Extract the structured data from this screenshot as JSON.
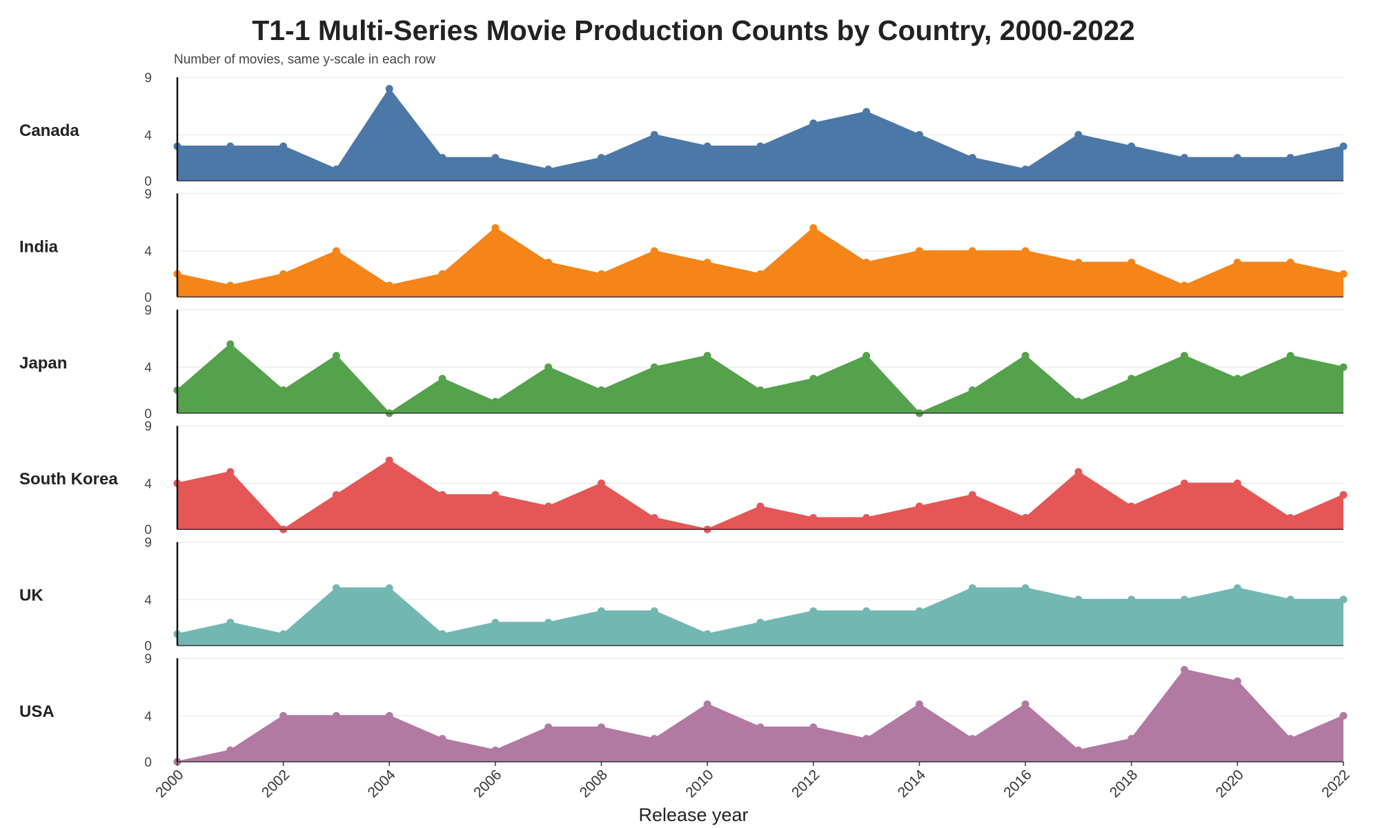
{
  "chart_data": {
    "type": "area",
    "title": "T1-1 Multi-Series Movie Production Counts by Country, 2000-2022",
    "subtitle": "Number of movies, same y-scale in each row",
    "xlabel": "Release year",
    "ylabel": "",
    "x": [
      2000,
      2001,
      2002,
      2003,
      2004,
      2005,
      2006,
      2007,
      2008,
      2009,
      2010,
      2011,
      2012,
      2013,
      2014,
      2015,
      2016,
      2017,
      2018,
      2019,
      2020,
      2021,
      2022
    ],
    "xticks": [
      "2000",
      "2002",
      "2004",
      "2006",
      "2008",
      "2010",
      "2012",
      "2014",
      "2016",
      "2018",
      "2020",
      "2022"
    ],
    "yticks": [
      "0",
      "4",
      "9"
    ],
    "ylim": [
      0,
      9
    ],
    "grid": true,
    "legend": "none (row labels on left)",
    "series": [
      {
        "name": "Canada",
        "color": "#4c78a8",
        "values": [
          3,
          3,
          3,
          1,
          8,
          2,
          2,
          1,
          2,
          4,
          3,
          3,
          5,
          6,
          4,
          2,
          1,
          4,
          3,
          2,
          2,
          2,
          3
        ]
      },
      {
        "name": "India",
        "color": "#f58518",
        "values": [
          2,
          1,
          2,
          4,
          1,
          2,
          6,
          3,
          2,
          4,
          3,
          2,
          6,
          3,
          4,
          4,
          4,
          3,
          3,
          1,
          3,
          3,
          2
        ]
      },
      {
        "name": "Japan",
        "color": "#54a24b",
        "values": [
          2,
          6,
          2,
          5,
          0,
          3,
          1,
          4,
          2,
          4,
          5,
          2,
          3,
          5,
          0,
          2,
          5,
          1,
          3,
          5,
          3,
          5,
          4
        ]
      },
      {
        "name": "South Korea",
        "color": "#e45756",
        "values": [
          4,
          5,
          0,
          3,
          6,
          3,
          3,
          2,
          4,
          1,
          0,
          2,
          1,
          1,
          2,
          3,
          1,
          5,
          2,
          4,
          4,
          1,
          3
        ]
      },
      {
        "name": "UK",
        "color": "#72b7b2",
        "values": [
          1,
          2,
          1,
          5,
          5,
          1,
          2,
          2,
          3,
          3,
          1,
          2,
          3,
          3,
          3,
          5,
          5,
          4,
          4,
          4,
          5,
          4,
          4
        ]
      },
      {
        "name": "USA",
        "color": "#b279a2",
        "values": [
          0,
          1,
          4,
          4,
          4,
          2,
          1,
          3,
          3,
          2,
          5,
          3,
          3,
          2,
          5,
          2,
          5,
          1,
          2,
          8,
          7,
          2,
          4
        ]
      }
    ]
  }
}
